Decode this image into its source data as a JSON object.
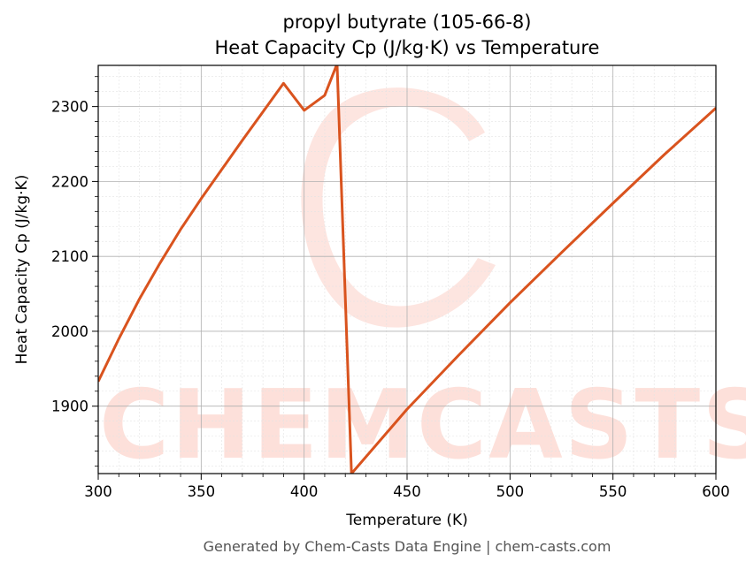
{
  "chart_data": {
    "type": "line",
    "title_line1": "propyl butyrate (105-66-8)",
    "title_line2": "Heat Capacity Cp (J/kg·K) vs Temperature",
    "xlabel": "Temperature (K)",
    "ylabel": "Heat Capacity Cp (J/kg·K)",
    "xlim": [
      300,
      600
    ],
    "ylim": [
      1810,
      2355
    ],
    "x_ticks": [
      300,
      350,
      400,
      450,
      500,
      550,
      600
    ],
    "y_ticks": [
      1900,
      2000,
      2100,
      2200,
      2300
    ],
    "grid": true,
    "line_color": "#d9531e",
    "series": [
      {
        "segments": [
          {
            "x": [
              300,
              310,
              320,
              330,
              340,
              350,
              360,
              370,
              380,
              390,
              400,
              410,
              416
            ],
            "y": [
              1933,
              1990,
              2043,
              2091,
              2136,
              2177,
              2216,
              2255,
              2293,
              2331,
              2295,
              2315,
              2357
            ]
          },
          {
            "x": [
              416,
              423
            ],
            "y": [
              2357,
              1810
            ]
          },
          {
            "x": [
              423,
              450,
              475,
              500,
              525,
              550,
              575,
              600
            ],
            "y": [
              1810,
              1896,
              1968,
              2038,
              2105,
              2171,
              2236,
              2298
            ]
          }
        ]
      }
    ]
  },
  "watermark": {
    "text": "CHEMCASTS",
    "color": "#fde0da"
  },
  "footer": "Generated by Chem-Casts Data Engine | chem-casts.com"
}
